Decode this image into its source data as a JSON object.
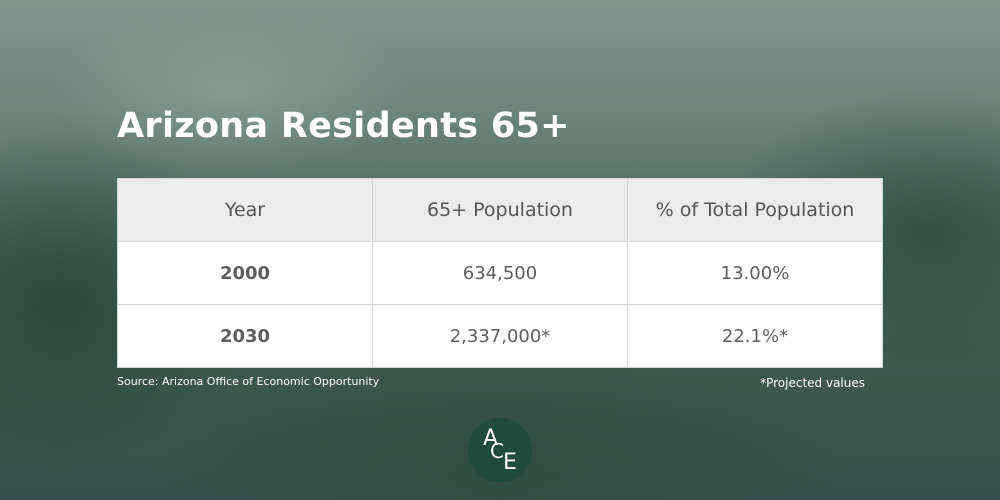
{
  "title": "Arizona Residents 65+",
  "table": {
    "header": [
      "Year",
      "65+ Population",
      "% of Total Population"
    ],
    "rows": [
      [
        "2000",
        "634,500",
        "13.00%"
      ],
      [
        "2030",
        "2,337,000*",
        "22.1%*"
      ]
    ]
  },
  "source": "Source: Arizona Office of Economic Opportunity",
  "note": "*Projected values",
  "logo": [
    "A",
    "C",
    "E"
  ]
}
